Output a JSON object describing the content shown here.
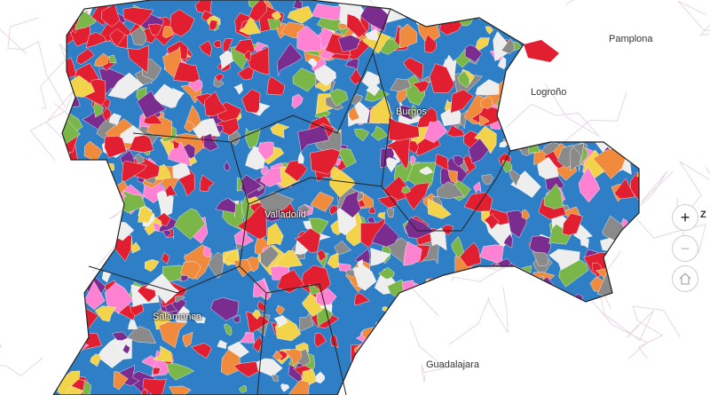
{
  "labels": {
    "pamplona": "Pamplona",
    "logrono": "Logroño",
    "burgos": "Burgos",
    "valladolid": "Valladolid",
    "salamanca": "Salamanca",
    "guadalajara": "Guadalajara",
    "edge": "Z"
  },
  "controls": {
    "zoom_in": "+",
    "zoom_out": "−",
    "home_icon": "home-icon"
  },
  "colors": {
    "base": "#2f7fc6",
    "palette": [
      "#e21f30",
      "#e21f30",
      "#e21f30",
      "#7ab648",
      "#ff82d2",
      "#f08a3c",
      "#7a2d8f",
      "#8a8a8a",
      "#f3d34a",
      "#eeeeee"
    ],
    "border": "#222222",
    "background_roads": "#e7d6e4"
  }
}
